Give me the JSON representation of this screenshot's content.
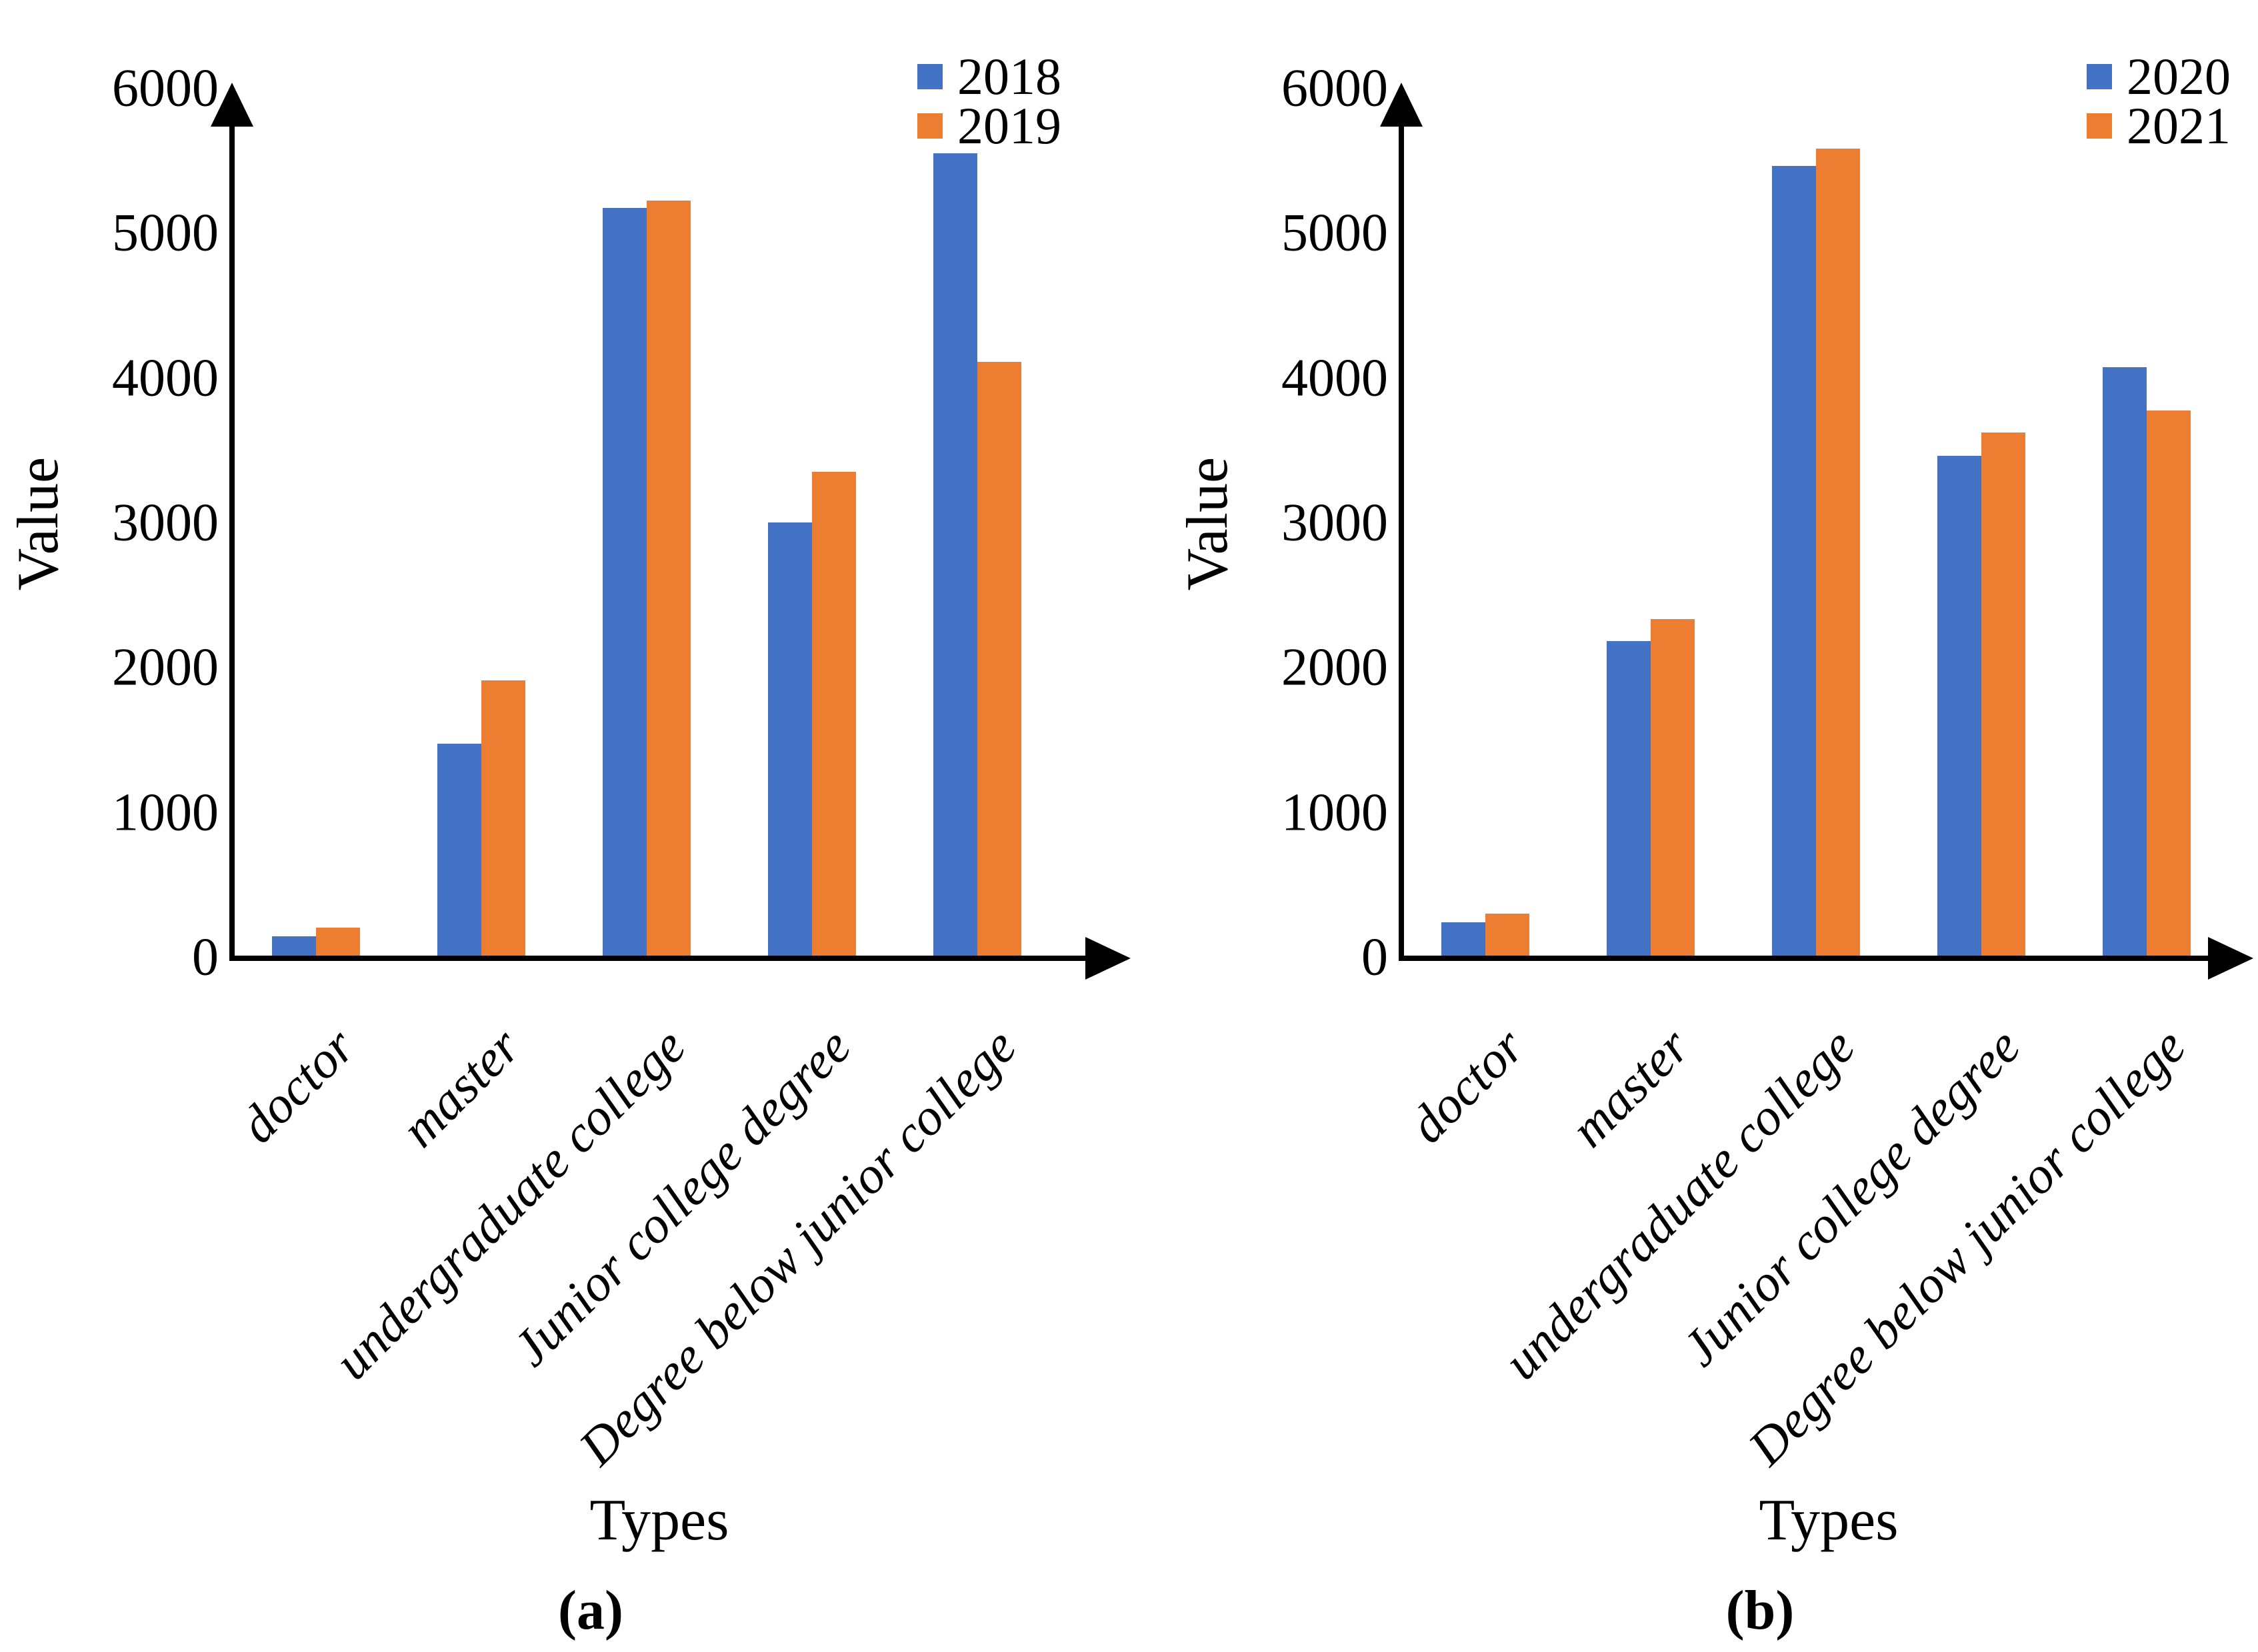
{
  "panels": [
    {
      "caption": "(a)"
    },
    {
      "caption": "(b)"
    }
  ],
  "chart_data": [
    {
      "type": "bar",
      "title": "",
      "xlabel": "Types",
      "ylabel": "Value",
      "categories": [
        "doctor",
        "master",
        "undergraduate college",
        "Junior college degree",
        "Degree below junior college"
      ],
      "series": [
        {
          "name": "2018",
          "values": [
            150,
            1480,
            5180,
            3010,
            5560
          ]
        },
        {
          "name": "2019",
          "values": [
            210,
            1920,
            5230,
            3360,
            4120
          ]
        }
      ],
      "ylim": [
        0,
        6000
      ],
      "yticks": [
        0,
        1000,
        2000,
        3000,
        4000,
        5000,
        6000
      ],
      "grid": false,
      "legend_position": "top-right",
      "colors": [
        "#4472C4",
        "#ED7D31"
      ]
    },
    {
      "type": "bar",
      "title": "",
      "xlabel": "Types",
      "ylabel": "Value",
      "categories": [
        "doctor",
        "master",
        "undergraduate college",
        "Junior college degree",
        "Degree below junior college"
      ],
      "series": [
        {
          "name": "2020",
          "values": [
            250,
            2190,
            5470,
            3470,
            4080
          ]
        },
        {
          "name": "2021",
          "values": [
            310,
            2340,
            5590,
            3630,
            3780
          ]
        }
      ],
      "ylim": [
        0,
        6000
      ],
      "yticks": [
        0,
        1000,
        2000,
        3000,
        4000,
        5000,
        6000
      ],
      "grid": false,
      "legend_position": "top-right",
      "colors": [
        "#4472C4",
        "#ED7D31"
      ]
    }
  ]
}
